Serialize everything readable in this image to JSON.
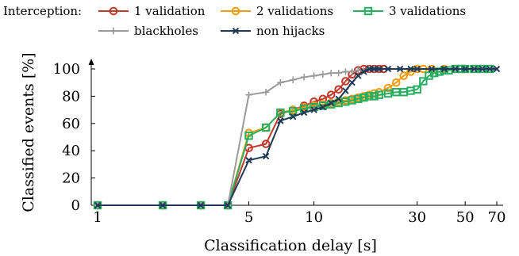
{
  "chart_data": {
    "type": "line",
    "legend_title": "Interception:",
    "legend_position": "top",
    "xlabel": "Classification delay [s]",
    "ylabel": "Classified events [%]",
    "x_scale": "log",
    "xlim": [
      1,
      70
    ],
    "ylim": [
      0,
      100
    ],
    "x_ticks": [
      1,
      5,
      10,
      30,
      50,
      70
    ],
    "y_ticks": [
      0,
      20,
      40,
      60,
      80,
      100
    ],
    "grid": false,
    "series": [
      {
        "name": "1 validation",
        "color": "#c0392b",
        "marker": "circle",
        "points": [
          [
            1,
            0
          ],
          [
            2,
            0
          ],
          [
            3,
            0
          ],
          [
            4,
            0
          ],
          [
            5,
            42
          ],
          [
            6,
            45
          ],
          [
            7,
            67
          ],
          [
            8,
            70
          ],
          [
            9,
            73
          ],
          [
            10,
            76
          ],
          [
            11,
            78
          ],
          [
            12,
            81
          ],
          [
            13,
            85
          ],
          [
            14,
            91
          ],
          [
            15,
            96
          ],
          [
            16,
            99
          ],
          [
            17,
            100
          ],
          [
            18,
            100
          ],
          [
            19,
            100
          ],
          [
            20,
            100
          ],
          [
            21,
            100
          ]
        ]
      },
      {
        "name": "2 validations",
        "color": "#f39c12",
        "marker": "circle",
        "points": [
          [
            1,
            0
          ],
          [
            2,
            0
          ],
          [
            3,
            0
          ],
          [
            4,
            0
          ],
          [
            5,
            53
          ],
          [
            6,
            57
          ],
          [
            7,
            68
          ],
          [
            8,
            70
          ],
          [
            9,
            72
          ],
          [
            10,
            73
          ],
          [
            11,
            74
          ],
          [
            12,
            75
          ],
          [
            13,
            76
          ],
          [
            14,
            77
          ],
          [
            15,
            78
          ],
          [
            16,
            79
          ],
          [
            17,
            80
          ],
          [
            18,
            81
          ],
          [
            19,
            82
          ],
          [
            20,
            83
          ],
          [
            22,
            86
          ],
          [
            24,
            90
          ],
          [
            26,
            95
          ],
          [
            28,
            98
          ],
          [
            30,
            100
          ],
          [
            32,
            100
          ],
          [
            35,
            100
          ],
          [
            40,
            100
          ],
          [
            45,
            100
          ],
          [
            50,
            100
          ],
          [
            55,
            100
          ]
        ]
      },
      {
        "name": "3 validations",
        "color": "#27ae60",
        "marker": "square",
        "points": [
          [
            1,
            0
          ],
          [
            2,
            0
          ],
          [
            3,
            0
          ],
          [
            4,
            0
          ],
          [
            5,
            51
          ],
          [
            6,
            57
          ],
          [
            7,
            68
          ],
          [
            8,
            69
          ],
          [
            9,
            71
          ],
          [
            10,
            72
          ],
          [
            11,
            73
          ],
          [
            12,
            74
          ],
          [
            13,
            75
          ],
          [
            14,
            76
          ],
          [
            15,
            77
          ],
          [
            16,
            78
          ],
          [
            17,
            79
          ],
          [
            18,
            80
          ],
          [
            19,
            80
          ],
          [
            20,
            81
          ],
          [
            22,
            82
          ],
          [
            24,
            83
          ],
          [
            26,
            83
          ],
          [
            28,
            84
          ],
          [
            30,
            85
          ],
          [
            32,
            91
          ],
          [
            34,
            95
          ],
          [
            36,
            97
          ],
          [
            38,
            98
          ],
          [
            40,
            99
          ],
          [
            42,
            99
          ],
          [
            45,
            100
          ],
          [
            48,
            100
          ],
          [
            50,
            100
          ],
          [
            55,
            100
          ],
          [
            60,
            100
          ],
          [
            65,
            100
          ]
        ]
      },
      {
        "name": "blackholes",
        "color": "#9a9a9a",
        "marker": "plus",
        "points": [
          [
            1,
            0
          ],
          [
            2,
            0
          ],
          [
            3,
            0
          ],
          [
            4,
            0
          ],
          [
            5,
            81
          ],
          [
            6,
            83
          ],
          [
            7,
            90
          ],
          [
            8,
            92
          ],
          [
            9,
            94
          ],
          [
            10,
            95
          ],
          [
            11,
            96
          ],
          [
            12,
            97
          ],
          [
            13,
            97
          ],
          [
            14,
            98
          ],
          [
            15,
            98
          ],
          [
            16,
            99
          ],
          [
            17,
            99
          ],
          [
            18,
            100
          ],
          [
            19,
            100
          ],
          [
            20,
            100
          ]
        ]
      },
      {
        "name": "non hijacks",
        "color": "#1f3a57",
        "marker": "x",
        "points": [
          [
            1,
            0
          ],
          [
            2,
            0
          ],
          [
            3,
            0
          ],
          [
            4,
            0
          ],
          [
            5,
            33
          ],
          [
            6,
            36
          ],
          [
            7,
            62
          ],
          [
            8,
            65
          ],
          [
            9,
            68
          ],
          [
            10,
            70
          ],
          [
            11,
            72
          ],
          [
            12,
            75
          ],
          [
            13,
            78
          ],
          [
            14,
            84
          ],
          [
            15,
            90
          ],
          [
            16,
            95
          ],
          [
            17,
            98
          ],
          [
            18,
            100
          ],
          [
            19,
            100
          ],
          [
            20,
            100
          ],
          [
            22,
            100
          ],
          [
            25,
            100
          ],
          [
            28,
            100
          ],
          [
            30,
            100
          ],
          [
            35,
            100
          ],
          [
            40,
            100
          ],
          [
            45,
            100
          ],
          [
            50,
            100
          ],
          [
            55,
            100
          ],
          [
            60,
            100
          ],
          [
            65,
            100
          ],
          [
            70,
            100
          ]
        ]
      }
    ]
  }
}
